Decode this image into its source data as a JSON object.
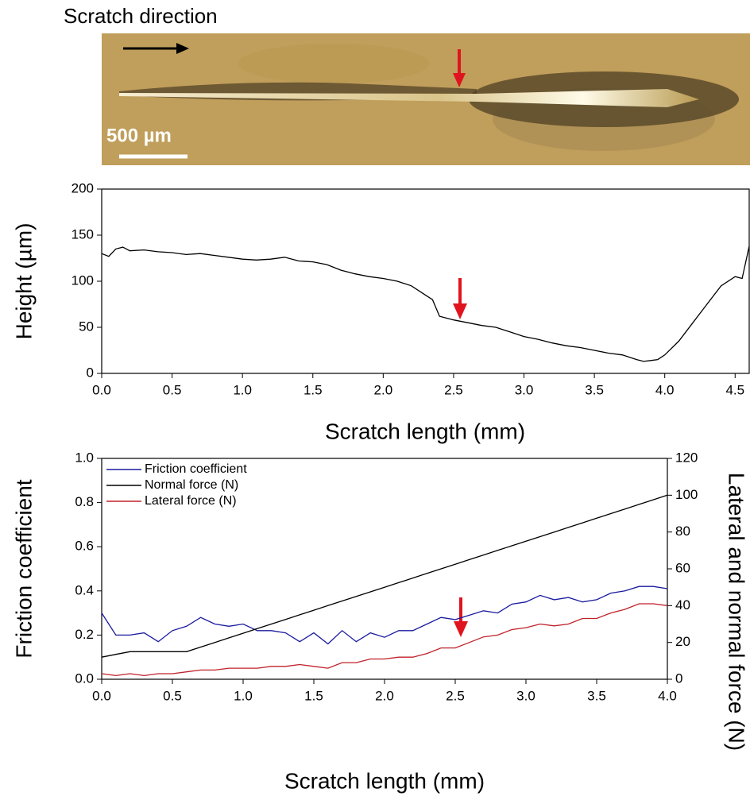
{
  "image": {
    "caption": "Scratch direction",
    "scale_bar": "500 µm"
  },
  "chart_data": [
    {
      "type": "line",
      "xlabel": "Scratch length (mm)",
      "ylabel": "Height (µm)",
      "color": "#000000",
      "x": [
        0,
        0.05,
        0.1,
        0.15,
        0.2,
        0.3,
        0.4,
        0.5,
        0.6,
        0.7,
        0.8,
        0.9,
        1.0,
        1.1,
        1.2,
        1.3,
        1.4,
        1.5,
        1.6,
        1.7,
        1.8,
        1.9,
        2.0,
        2.1,
        2.2,
        2.3,
        2.35,
        2.4,
        2.5,
        2.6,
        2.7,
        2.8,
        2.9,
        3.0,
        3.1,
        3.2,
        3.3,
        3.4,
        3.5,
        3.6,
        3.7,
        3.8,
        3.85,
        3.9,
        3.95,
        4.0,
        4.1,
        4.2,
        4.3,
        4.4,
        4.5,
        4.55,
        4.6
      ],
      "values": [
        130,
        127,
        135,
        137,
        133,
        134,
        132,
        131,
        129,
        130,
        128,
        126,
        124,
        123,
        124,
        126,
        122,
        121,
        118,
        112,
        108,
        105,
        103,
        100,
        95,
        85,
        80,
        62,
        58,
        55,
        52,
        50,
        45,
        40,
        37,
        33,
        30,
        28,
        25,
        22,
        20,
        15,
        13,
        14,
        15,
        20,
        35,
        55,
        75,
        95,
        105,
        103,
        138
      ],
      "xlim": [
        0,
        4.6
      ],
      "ylim": [
        0,
        200
      ],
      "xticks": [
        {
          "value": 0,
          "label": "0.0"
        },
        0.5,
        {
          "value": 1,
          "label": "1.0"
        },
        1.5,
        {
          "value": 2,
          "label": "2.0"
        },
        2.5,
        {
          "value": 3,
          "label": "3.0"
        },
        3.5,
        {
          "value": 4,
          "label": "4.0"
        },
        4.5
      ],
      "yticks": [
        0,
        50,
        100,
        150,
        200
      ]
    },
    {
      "type": "line",
      "xlabel": "Scratch length (mm)",
      "ylabel": "Friction coefficient",
      "y2label": "Lateral and normal force (N)",
      "legend": "upper left",
      "x": [
        0,
        0.1,
        0.2,
        0.3,
        0.4,
        0.5,
        0.6,
        0.7,
        0.8,
        0.9,
        1.0,
        1.1,
        1.2,
        1.3,
        1.4,
        1.5,
        1.6,
        1.7,
        1.8,
        1.9,
        2.0,
        2.1,
        2.2,
        2.3,
        2.4,
        2.5,
        2.6,
        2.7,
        2.8,
        2.9,
        3.0,
        3.1,
        3.2,
        3.3,
        3.4,
        3.5,
        3.6,
        3.7,
        3.8,
        3.9,
        4.0
      ],
      "series": [
        {
          "name": "Friction coefficient",
          "color": "#1a1aa0",
          "values": [
            0.3,
            0.2,
            0.2,
            0.21,
            0.17,
            0.22,
            0.24,
            0.28,
            0.25,
            0.24,
            0.25,
            0.22,
            0.22,
            0.21,
            0.17,
            0.21,
            0.16,
            0.22,
            0.17,
            0.21,
            0.19,
            0.22,
            0.22,
            0.25,
            0.28,
            0.27,
            0.29,
            0.31,
            0.3,
            0.34,
            0.35,
            0.38,
            0.36,
            0.37,
            0.35,
            0.36,
            0.39,
            0.4,
            0.42,
            0.42,
            0.41
          ]
        },
        {
          "name": "Normal force (N)",
          "color": "#000000",
          "axis": "y2",
          "values": [
            12,
            13.5,
            15,
            15,
            15,
            15,
            15,
            17.5,
            20,
            22.5,
            25,
            27.5,
            30,
            32.5,
            35,
            37.5,
            40,
            42.5,
            45,
            47.5,
            50,
            52.5,
            55,
            57.5,
            60,
            62.5,
            65,
            67.5,
            70,
            72.5,
            75,
            77.5,
            80,
            82.5,
            85,
            87.5,
            90,
            92.5,
            95,
            97.5,
            100
          ]
        },
        {
          "name": "Lateral force (N)",
          "color": "#c0202a",
          "axis": "y2",
          "values": [
            3,
            2,
            3,
            2,
            3,
            3,
            4,
            5,
            5,
            6,
            6,
            6,
            7,
            7,
            8,
            7,
            6,
            9,
            9,
            11,
            11,
            12,
            12,
            14,
            17,
            17,
            20,
            23,
            24,
            27,
            28,
            30,
            29,
            30,
            33,
            33,
            36,
            38,
            41,
            41,
            40
          ]
        }
      ],
      "xlim": [
        0,
        4
      ],
      "ylim": [
        0,
        1
      ],
      "y2lim": [
        0,
        120
      ],
      "xticks": [
        {
          "value": 0,
          "label": "0.0"
        },
        0.5,
        {
          "value": 1,
          "label": "1.0"
        },
        1.5,
        {
          "value": 2,
          "label": "2.0"
        },
        2.5,
        {
          "value": 3,
          "label": "3.0"
        },
        3.5,
        {
          "value": 4,
          "label": "4.0"
        }
      ],
      "yticks": [
        {
          "value": 0,
          "label": "0.0"
        },
        0.2,
        0.4,
        0.6,
        0.8,
        {
          "value": 1,
          "label": "1.0"
        }
      ],
      "y2ticks": [
        0,
        20,
        40,
        60,
        80,
        100,
        120
      ]
    }
  ]
}
